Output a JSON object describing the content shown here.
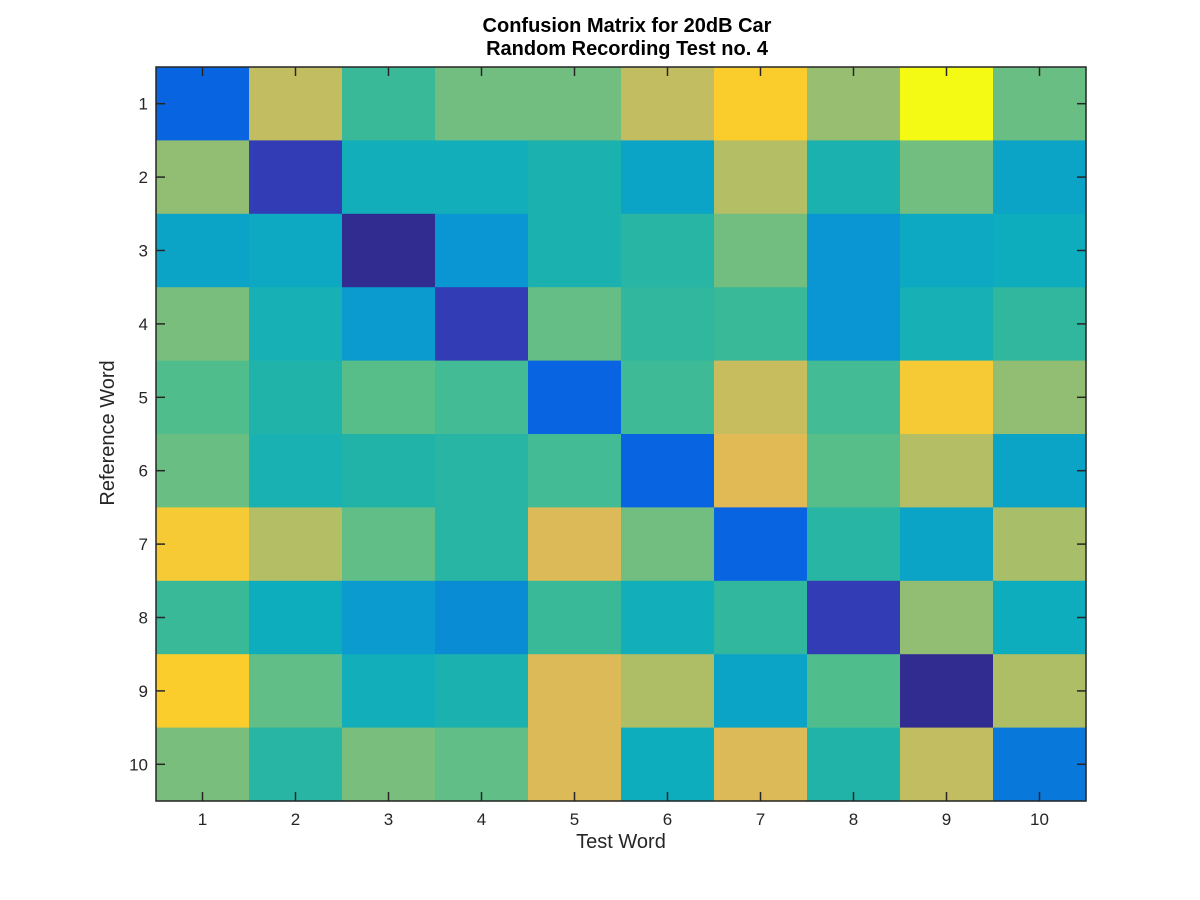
{
  "chart_data": {
    "type": "heatmap",
    "title": [
      "Confusion Matrix for 20dB Car",
      "Random Recording Test no. 4"
    ],
    "xlabel": "Test Word",
    "ylabel": "Reference Word",
    "x_ticks": [
      "1",
      "2",
      "3",
      "4",
      "5",
      "6",
      "7",
      "8",
      "9",
      "10"
    ],
    "y_ticks": [
      "1",
      "2",
      "3",
      "4",
      "5",
      "6",
      "7",
      "8",
      "9",
      "10"
    ],
    "colormap": "parula",
    "value_range": [
      0,
      1
    ],
    "grid": false,
    "matrix": [
      [
        0.2,
        0.82,
        0.55,
        0.68,
        0.68,
        0.82,
        0.93,
        0.75,
        1.0,
        0.66
      ],
      [
        0.74,
        0.1,
        0.42,
        0.42,
        0.46,
        0.36,
        0.8,
        0.46,
        0.68,
        0.36
      ],
      [
        0.36,
        0.38,
        0.03,
        0.3,
        0.46,
        0.51,
        0.68,
        0.3,
        0.38,
        0.4
      ],
      [
        0.7,
        0.44,
        0.32,
        0.1,
        0.65,
        0.53,
        0.55,
        0.3,
        0.44,
        0.53
      ],
      [
        0.6,
        0.48,
        0.62,
        0.57,
        0.2,
        0.56,
        0.83,
        0.57,
        0.92,
        0.74
      ],
      [
        0.66,
        0.45,
        0.49,
        0.51,
        0.57,
        0.2,
        0.87,
        0.62,
        0.8,
        0.36
      ],
      [
        0.92,
        0.8,
        0.64,
        0.51,
        0.86,
        0.68,
        0.2,
        0.51,
        0.36,
        0.78
      ],
      [
        0.55,
        0.4,
        0.32,
        0.28,
        0.55,
        0.42,
        0.53,
        0.1,
        0.74,
        0.4
      ],
      [
        0.93,
        0.64,
        0.42,
        0.46,
        0.86,
        0.79,
        0.36,
        0.6,
        0.03,
        0.79
      ],
      [
        0.7,
        0.51,
        0.7,
        0.64,
        0.86,
        0.4,
        0.86,
        0.49,
        0.82,
        0.24
      ]
    ]
  }
}
